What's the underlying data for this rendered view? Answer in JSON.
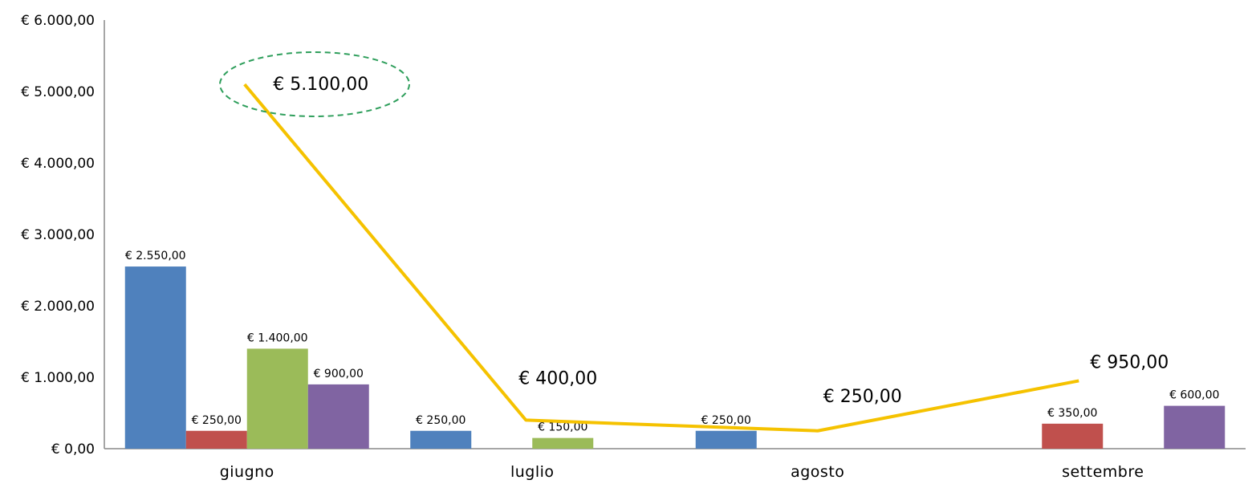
{
  "chart_data": {
    "type": "bar",
    "categories": [
      "giugno",
      "luglio",
      "agosto",
      "settembre"
    ],
    "ylim": [
      0,
      6000
    ],
    "yticks": [
      0,
      1000,
      2000,
      3000,
      4000,
      5000,
      6000
    ],
    "ytick_labels": [
      "€ 0,00",
      "€ 1.000,00",
      "€ 2.000,00",
      "€ 3.000,00",
      "€ 4.000,00",
      "€ 5.000,00",
      "€ 6.000,00"
    ],
    "grid": false,
    "legend": "none",
    "series": [
      {
        "color": "#4F81BD",
        "values": [
          2550,
          250,
          250,
          null
        ],
        "labels": [
          "€ 2.550,00",
          "€ 250,00",
          "€ 250,00",
          null
        ]
      },
      {
        "color": "#C0504D",
        "values": [
          250,
          null,
          null,
          350
        ],
        "labels": [
          "€ 250,00",
          null,
          null,
          "€ 350,00"
        ]
      },
      {
        "color": "#9BBB59",
        "values": [
          1400,
          150,
          null,
          null
        ],
        "labels": [
          "€ 1.400,00",
          "€ 150,00",
          null,
          null
        ]
      },
      {
        "color": "#8064A2",
        "values": [
          900,
          null,
          null,
          600
        ],
        "labels": [
          "€ 900,00",
          null,
          null,
          "€ 600,00"
        ]
      }
    ],
    "total_line": {
      "type": "line",
      "color": "#F5C200",
      "values": [
        5100,
        400,
        250,
        950
      ],
      "labels": [
        "€ 5.100,00",
        "€ 400,00",
        "€ 250,00",
        "€ 950,00"
      ]
    },
    "annotation": {
      "type": "dashed-ellipse",
      "target": "giugno total",
      "color": "#2E9E5B"
    }
  }
}
